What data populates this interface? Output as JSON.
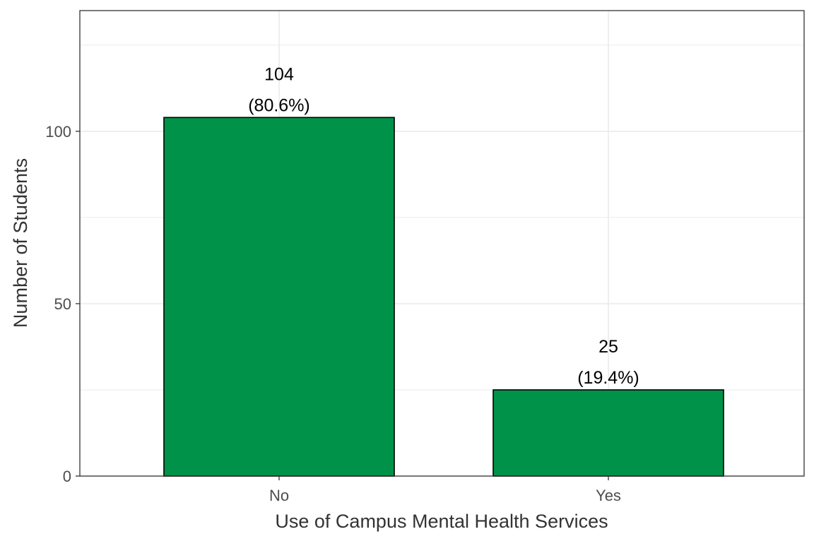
{
  "chart_data": {
    "type": "bar",
    "title": "",
    "xlabel": "Use of Campus Mental Health Services",
    "ylabel": "Number of Students",
    "categories": [
      "No",
      "Yes"
    ],
    "values": [
      104,
      25
    ],
    "percent_labels": [
      "(80.6%)",
      "(19.4%)"
    ],
    "count_labels": [
      "104",
      "25"
    ],
    "ylim": [
      0,
      135
    ],
    "yticks": [
      0,
      50,
      100
    ],
    "ytick_labels": [
      "0",
      "50",
      "100"
    ],
    "grid": true,
    "legend": "none",
    "bar_color": "#009248",
    "bar_outline_color": "#000000"
  }
}
